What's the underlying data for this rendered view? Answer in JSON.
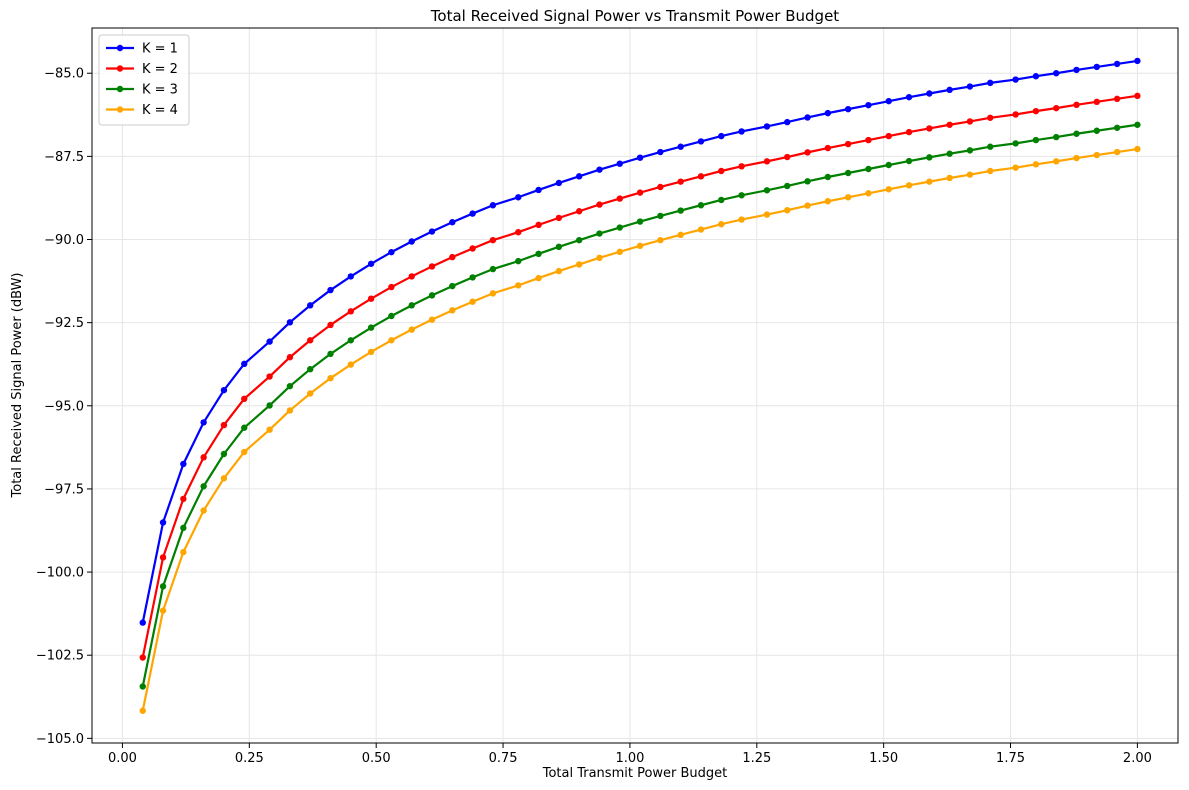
{
  "chart_data": {
    "type": "line",
    "title": "Total Received Signal Power vs Transmit Power Budget",
    "xlabel": "Total Transmit Power Budget",
    "ylabel": "Total Received Signal Power (dBW)",
    "xlim": [
      -0.06,
      2.08
    ],
    "ylim": [
      -105.14,
      -83.64
    ],
    "xticks": [
      0.0,
      0.25,
      0.5,
      0.75,
      1.0,
      1.25,
      1.5,
      1.75,
      2.0
    ],
    "xtick_labels": [
      "0.00",
      "0.25",
      "0.50",
      "0.75",
      "1.00",
      "1.25",
      "1.50",
      "1.75",
      "2.00"
    ],
    "yticks": [
      -105.0,
      -102.5,
      -100.0,
      -97.5,
      -95.0,
      -92.5,
      -90.0,
      -87.5,
      -85.0
    ],
    "ytick_labels": [
      "−105.0",
      "−102.5",
      "−100.0",
      "−97.5",
      "−95.0",
      "−92.5",
      "−90.0",
      "−87.5",
      "−85.0"
    ],
    "grid": true,
    "legend_position": "top-left",
    "x": [
      0.04,
      0.08,
      0.12,
      0.16,
      0.2,
      0.24,
      0.29,
      0.33,
      0.37,
      0.41,
      0.45,
      0.49,
      0.53,
      0.57,
      0.61,
      0.65,
      0.69,
      0.73,
      0.78,
      0.82,
      0.86,
      0.9,
      0.94,
      0.98,
      1.02,
      1.06,
      1.1,
      1.14,
      1.18,
      1.22,
      1.27,
      1.31,
      1.35,
      1.39,
      1.43,
      1.47,
      1.51,
      1.55,
      1.59,
      1.63,
      1.67,
      1.71,
      1.76,
      1.8,
      1.84,
      1.88,
      1.92,
      1.96,
      2.0
    ],
    "series": [
      {
        "name": "K = 1",
        "color": "#0000ff",
        "values": [
          -101.52,
          -98.51,
          -96.75,
          -95.5,
          -94.53,
          -93.74,
          -93.07,
          -92.49,
          -91.98,
          -91.52,
          -91.11,
          -90.73,
          -90.38,
          -90.06,
          -89.76,
          -89.48,
          -89.22,
          -88.97,
          -88.73,
          -88.51,
          -88.3,
          -88.1,
          -87.9,
          -87.72,
          -87.54,
          -87.37,
          -87.21,
          -87.05,
          -86.89,
          -86.75,
          -86.6,
          -86.47,
          -86.33,
          -86.2,
          -86.08,
          -85.96,
          -85.84,
          -85.72,
          -85.61,
          -85.5,
          -85.4,
          -85.29,
          -85.19,
          -85.09,
          -85.0,
          -84.9,
          -84.81,
          -84.72,
          -84.63
        ]
      },
      {
        "name": "K = 2",
        "color": "#ff0000",
        "values": [
          -102.57,
          -99.56,
          -97.8,
          -96.55,
          -95.58,
          -94.79,
          -94.12,
          -93.54,
          -93.03,
          -92.57,
          -92.16,
          -91.78,
          -91.43,
          -91.11,
          -90.81,
          -90.53,
          -90.27,
          -90.02,
          -89.78,
          -89.56,
          -89.35,
          -89.15,
          -88.95,
          -88.77,
          -88.59,
          -88.42,
          -88.26,
          -88.1,
          -87.94,
          -87.8,
          -87.65,
          -87.52,
          -87.38,
          -87.25,
          -87.13,
          -87.01,
          -86.89,
          -86.77,
          -86.66,
          -86.55,
          -86.45,
          -86.34,
          -86.24,
          -86.14,
          -86.05,
          -85.95,
          -85.86,
          -85.77,
          -85.68
        ]
      },
      {
        "name": "K = 3",
        "color": "#008000",
        "values": [
          -103.44,
          -100.43,
          -98.67,
          -97.42,
          -96.45,
          -95.66,
          -94.99,
          -94.41,
          -93.9,
          -93.44,
          -93.03,
          -92.65,
          -92.3,
          -91.98,
          -91.68,
          -91.4,
          -91.14,
          -90.89,
          -90.65,
          -90.43,
          -90.22,
          -90.02,
          -89.82,
          -89.64,
          -89.46,
          -89.29,
          -89.13,
          -88.97,
          -88.81,
          -88.67,
          -88.52,
          -88.39,
          -88.25,
          -88.12,
          -88.0,
          -87.88,
          -87.76,
          -87.64,
          -87.53,
          -87.42,
          -87.32,
          -87.21,
          -87.11,
          -87.01,
          -86.92,
          -86.82,
          -86.73,
          -86.64,
          -86.55
        ]
      },
      {
        "name": "K = 4",
        "color": "#ffa500",
        "values": [
          -104.17,
          -101.16,
          -99.4,
          -98.15,
          -97.18,
          -96.39,
          -95.72,
          -95.14,
          -94.63,
          -94.17,
          -93.76,
          -93.38,
          -93.03,
          -92.71,
          -92.41,
          -92.13,
          -91.87,
          -91.62,
          -91.38,
          -91.16,
          -90.95,
          -90.75,
          -90.55,
          -90.37,
          -90.19,
          -90.02,
          -89.86,
          -89.7,
          -89.54,
          -89.4,
          -89.25,
          -89.12,
          -88.98,
          -88.85,
          -88.73,
          -88.61,
          -88.49,
          -88.37,
          -88.26,
          -88.15,
          -88.05,
          -87.94,
          -87.84,
          -87.74,
          -87.65,
          -87.55,
          -87.46,
          -87.37,
          -87.28
        ]
      }
    ]
  }
}
